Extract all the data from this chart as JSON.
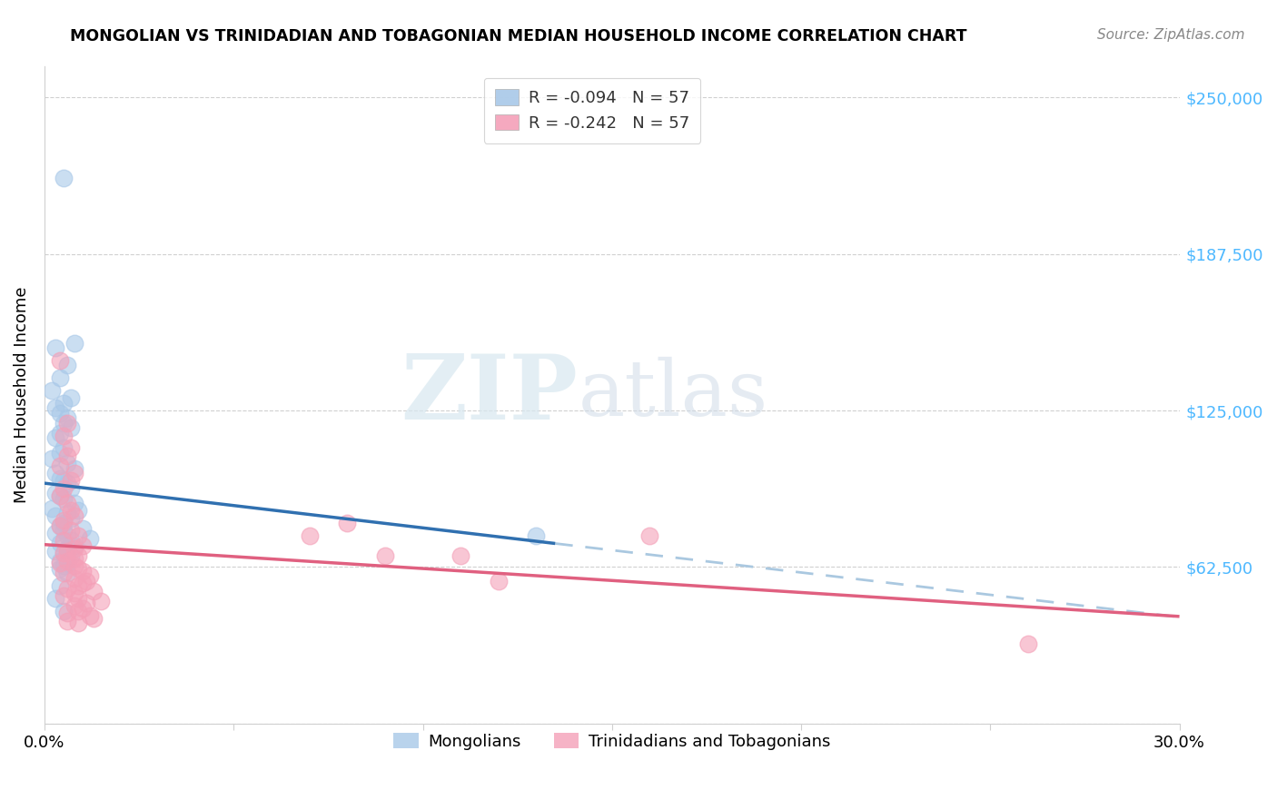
{
  "title": "MONGOLIAN VS TRINIDADIAN AND TOBAGONIAN MEDIAN HOUSEHOLD INCOME CORRELATION CHART",
  "source": "Source: ZipAtlas.com",
  "ylabel": "Median Household Income",
  "xlim": [
    0.0,
    0.3
  ],
  "ylim": [
    0,
    262500
  ],
  "yticks": [
    0,
    62500,
    125000,
    187500,
    250000
  ],
  "ytick_labels": [
    "",
    "$62,500",
    "$125,000",
    "$187,500",
    "$250,000"
  ],
  "r_mongolian": -0.094,
  "n_mongolian": 57,
  "r_trinidadian": -0.242,
  "n_trinidadian": 57,
  "blue_color": "#a8c8e8",
  "pink_color": "#f4a0b8",
  "blue_line_color": "#3070b0",
  "pink_line_color": "#e0407080",
  "legend_label_blue": "Mongolians",
  "legend_label_pink": "Trinidadians and Tobagonians",
  "watermark": "ZIPatlas",
  "mongolian_x": [
    0.005,
    0.008,
    0.003,
    0.006,
    0.004,
    0.002,
    0.007,
    0.005,
    0.003,
    0.004,
    0.006,
    0.005,
    0.007,
    0.004,
    0.003,
    0.005,
    0.004,
    0.002,
    0.006,
    0.008,
    0.003,
    0.004,
    0.005,
    0.006,
    0.007,
    0.003,
    0.004,
    0.005,
    0.008,
    0.002,
    0.009,
    0.006,
    0.003,
    0.007,
    0.005,
    0.004,
    0.01,
    0.005,
    0.003,
    0.006,
    0.012,
    0.007,
    0.004,
    0.008,
    0.006,
    0.003,
    0.005,
    0.007,
    0.004,
    0.006,
    0.13,
    0.005,
    0.004,
    0.006,
    0.004,
    0.003,
    0.005
  ],
  "mongolian_y": [
    218000,
    152000,
    150000,
    143000,
    138000,
    133000,
    130000,
    128000,
    126000,
    124000,
    122000,
    120000,
    118000,
    116000,
    114000,
    110000,
    108000,
    106000,
    104000,
    102000,
    100000,
    98000,
    97000,
    96000,
    94000,
    92000,
    91000,
    90000,
    88000,
    86000,
    85000,
    84000,
    83000,
    82000,
    80000,
    79000,
    78000,
    77000,
    76000,
    75000,
    74000,
    73000,
    72000,
    71000,
    70000,
    69000,
    68000,
    67000,
    65000,
    64000,
    75000,
    63000,
    62000,
    60000,
    55000,
    50000,
    45000
  ],
  "trinidadian_x": [
    0.004,
    0.006,
    0.005,
    0.007,
    0.006,
    0.004,
    0.008,
    0.007,
    0.005,
    0.004,
    0.006,
    0.007,
    0.008,
    0.005,
    0.004,
    0.007,
    0.009,
    0.005,
    0.01,
    0.008,
    0.006,
    0.005,
    0.009,
    0.008,
    0.006,
    0.004,
    0.008,
    0.009,
    0.01,
    0.005,
    0.012,
    0.008,
    0.011,
    0.01,
    0.009,
    0.006,
    0.013,
    0.008,
    0.005,
    0.009,
    0.015,
    0.011,
    0.008,
    0.01,
    0.009,
    0.006,
    0.012,
    0.013,
    0.006,
    0.009,
    0.16,
    0.11,
    0.08,
    0.12,
    0.09,
    0.26,
    0.07
  ],
  "trinidadian_y": [
    145000,
    120000,
    115000,
    110000,
    107000,
    103000,
    100000,
    97000,
    94000,
    91000,
    88000,
    85000,
    83000,
    81000,
    79000,
    77000,
    75000,
    73000,
    71000,
    70000,
    69000,
    68000,
    67000,
    66000,
    65000,
    64000,
    63000,
    62000,
    61000,
    60000,
    59000,
    58000,
    57000,
    56000,
    55000,
    54000,
    53000,
    52000,
    51000,
    50000,
    49000,
    48000,
    47000,
    46000,
    45000,
    44000,
    43000,
    42000,
    41000,
    40000,
    75000,
    67000,
    80000,
    57000,
    67000,
    32000,
    75000
  ]
}
